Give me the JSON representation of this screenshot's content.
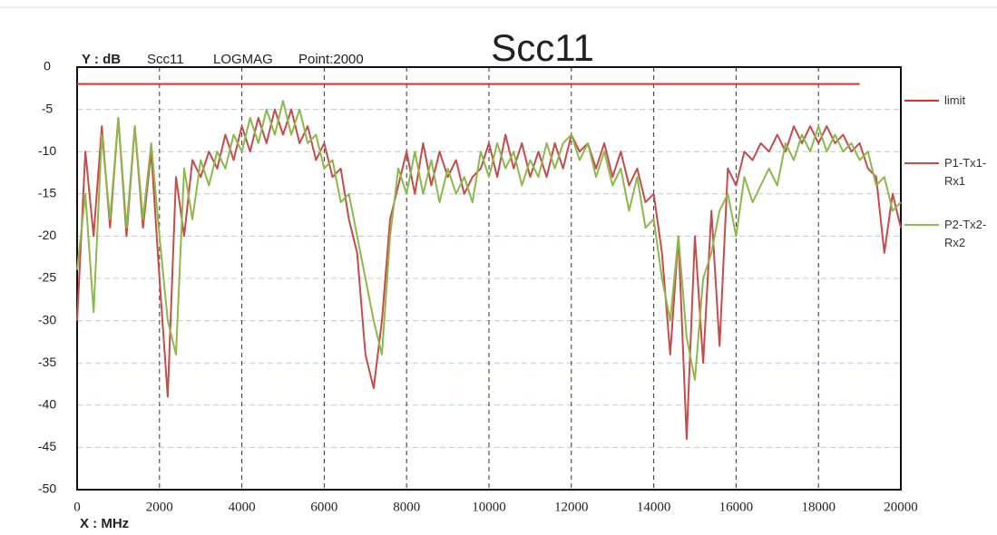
{
  "chart_data": {
    "type": "line",
    "title": "Scc11",
    "header": [
      "Y : dB",
      "Scc11",
      "LOGMAG",
      "Point:2000"
    ],
    "x_label": "X : MHz",
    "x": [
      0,
      200,
      400,
      600,
      800,
      1000,
      1200,
      1400,
      1600,
      1800,
      2000,
      2200,
      2400,
      2600,
      2800,
      3000,
      3200,
      3400,
      3600,
      3800,
      4000,
      4200,
      4400,
      4600,
      4800,
      5000,
      5200,
      5400,
      5600,
      5800,
      6000,
      6200,
      6400,
      6600,
      6800,
      7000,
      7200,
      7400,
      7600,
      7800,
      8000,
      8200,
      8400,
      8600,
      8800,
      9000,
      9200,
      9400,
      9600,
      9800,
      10000,
      10200,
      10400,
      10600,
      10800,
      11000,
      11200,
      11400,
      11600,
      11800,
      12000,
      12200,
      12400,
      12600,
      12800,
      13000,
      13200,
      13400,
      13600,
      13800,
      14000,
      14200,
      14400,
      14600,
      14800,
      15000,
      15200,
      15400,
      15600,
      15800,
      16000,
      16200,
      16400,
      16600,
      16800,
      17000,
      17200,
      17400,
      17600,
      17800,
      18000,
      18200,
      18400,
      18600,
      18800,
      19000,
      19200,
      19400,
      19600,
      19800,
      20000
    ],
    "series": [
      {
        "name": "limit",
        "color": "#d9302c",
        "x": [
          0,
          19000
        ],
        "values": [
          -2,
          -2
        ]
      },
      {
        "name": "P1-Tx1-Rx1",
        "color": "#c84b4b",
        "values": [
          -30,
          -10,
          -20,
          -7,
          -19,
          -6,
          -20,
          -7,
          -19,
          -10,
          -25,
          -39,
          -13,
          -20,
          -11,
          -13,
          -10,
          -12,
          -8,
          -11,
          -7,
          -10,
          -6,
          -9,
          -5,
          -8,
          -5,
          -9,
          -7,
          -11,
          -9,
          -13,
          -12,
          -18,
          -22,
          -34,
          -38,
          -30,
          -18,
          -14,
          -10,
          -15,
          -9,
          -14,
          -10,
          -13,
          -11,
          -15,
          -13,
          -12,
          -9,
          -13,
          -8,
          -12,
          -9,
          -13,
          -10,
          -13,
          -9,
          -12,
          -8,
          -10,
          -9,
          -12,
          -9,
          -13,
          -10,
          -14,
          -12,
          -16,
          -15,
          -22,
          -34,
          -20,
          -44,
          -20,
          -35,
          -17,
          -33,
          -12,
          -14,
          -10,
          -11,
          -9,
          -10,
          -8,
          -10,
          -7,
          -9,
          -7,
          -9,
          -7,
          -9,
          -8,
          -10,
          -9,
          -12,
          -13,
          -22,
          -15,
          -19
        ]
      },
      {
        "name": "P2-Tx2-Rx2",
        "color": "#8db84a",
        "values": [
          -24,
          -15,
          -29,
          -8,
          -18,
          -6,
          -19,
          -7,
          -18,
          -9,
          -20,
          -30,
          -34,
          -12,
          -18,
          -11,
          -14,
          -10,
          -12,
          -8,
          -10,
          -6,
          -9,
          -5,
          -8,
          -4,
          -8,
          -5,
          -9,
          -8,
          -12,
          -11,
          -16,
          -15,
          -20,
          -25,
          -30,
          -34,
          -20,
          -12,
          -15,
          -10,
          -15,
          -11,
          -16,
          -12,
          -15,
          -13,
          -16,
          -10,
          -13,
          -9,
          -12,
          -10,
          -14,
          -11,
          -13,
          -9,
          -12,
          -9,
          -8,
          -11,
          -9,
          -13,
          -10,
          -14,
          -12,
          -17,
          -13,
          -19,
          -18,
          -25,
          -30,
          -20,
          -32,
          -37,
          -25,
          -22,
          -17,
          -15,
          -20,
          -13,
          -16,
          -14,
          -12,
          -14,
          -9,
          -11,
          -8,
          -10,
          -7,
          -10,
          -8,
          -10,
          -9,
          -11,
          -10,
          -14,
          -13,
          -17,
          -16
        ]
      }
    ],
    "xlim": [
      0,
      20000
    ],
    "ylim": [
      -50,
      0
    ],
    "xticks": [
      0,
      2000,
      4000,
      6000,
      8000,
      10000,
      12000,
      14000,
      16000,
      18000,
      20000
    ],
    "yticks": [
      0,
      -5,
      -10,
      -15,
      -20,
      -25,
      -30,
      -35,
      -40,
      -45,
      -50
    ],
    "grid": true
  }
}
